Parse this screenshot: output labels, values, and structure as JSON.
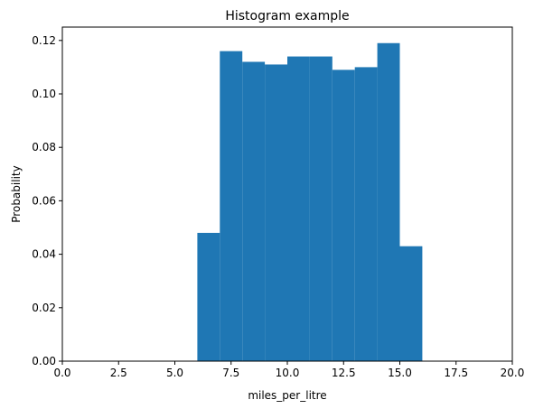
{
  "chart_data": {
    "type": "bar",
    "title": "Histogram example",
    "xlabel": "miles_per_litre",
    "ylabel": "Probability",
    "xlim": [
      0,
      20
    ],
    "ylim": [
      0,
      0.125
    ],
    "xticks": [
      0,
      2.5,
      5,
      7.5,
      10,
      12.5,
      15,
      17.5,
      20
    ],
    "xtick_labels": [
      "0.0",
      "2.5",
      "5.0",
      "7.5",
      "10.0",
      "12.5",
      "15.0",
      "17.5",
      "20.0"
    ],
    "yticks": [
      0,
      0.02,
      0.04,
      0.06,
      0.08,
      0.1,
      0.12
    ],
    "ytick_labels": [
      "0.00",
      "0.02",
      "0.04",
      "0.06",
      "0.08",
      "0.10",
      "0.12"
    ],
    "bin_edges": [
      6,
      7,
      8,
      9,
      10,
      11,
      12,
      13,
      14,
      15,
      16
    ],
    "values": [
      0.048,
      0.116,
      0.112,
      0.111,
      0.114,
      0.114,
      0.109,
      0.11,
      0.119,
      0.043
    ],
    "color": "#1f77b4",
    "grid": false,
    "legend": false
  }
}
